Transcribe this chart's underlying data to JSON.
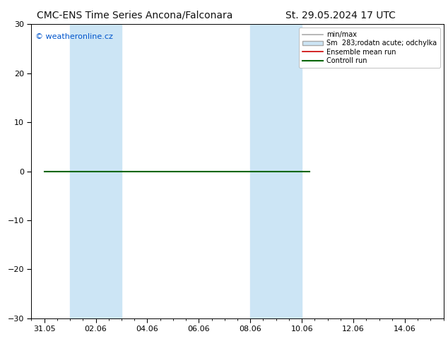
{
  "title_left": "CMC-ENS Time Series Ancona/Falconara",
  "title_right": "St. 29.05.2024 17 UTC",
  "ylim": [
    -30,
    30
  ],
  "yticks": [
    -30,
    -20,
    -10,
    0,
    10,
    20,
    30
  ],
  "xlim_start": 0,
  "xlim_end": 16,
  "xtick_positions": [
    0.5,
    2.5,
    4.5,
    6.5,
    8.5,
    10.5,
    12.5,
    14.5
  ],
  "xtick_labels": [
    "31.05",
    "02.06",
    "04.06",
    "06.06",
    "08.06",
    "10.06",
    "12.06",
    "14.06"
  ],
  "shaded_bands": [
    {
      "x_start": 1.5,
      "x_end": 2.5,
      "color": "#cce5f5",
      "alpha": 1.0
    },
    {
      "x_start": 2.5,
      "x_end": 3.5,
      "color": "#cce5f5",
      "alpha": 1.0
    },
    {
      "x_start": 8.5,
      "x_end": 9.5,
      "color": "#cce5f5",
      "alpha": 1.0
    },
    {
      "x_start": 9.5,
      "x_end": 10.5,
      "color": "#cce5f5",
      "alpha": 1.0
    }
  ],
  "hlines": [
    {
      "y": 0,
      "x_start": 0.5,
      "x_end": 10.8,
      "color": "#006600",
      "lw": 1.5
    }
  ],
  "watermark": "© weatheronline.cz",
  "watermark_color": "#0055cc",
  "background_color": "#ffffff",
  "legend_items": [
    {
      "label": "min/max",
      "color": "#aaaaaa",
      "lw": 1.2,
      "type": "line"
    },
    {
      "label": "Sm  283;rodatn acute; odchylka",
      "color": "#cce5f5",
      "edge": "#aaaaaa",
      "type": "patch"
    },
    {
      "label": "Ensemble mean run",
      "color": "#cc0000",
      "lw": 1.2,
      "type": "line"
    },
    {
      "label": "Controll run",
      "color": "#006600",
      "lw": 1.5,
      "type": "line"
    }
  ],
  "title_fontsize": 10,
  "tick_fontsize": 8,
  "legend_fontsize": 7
}
